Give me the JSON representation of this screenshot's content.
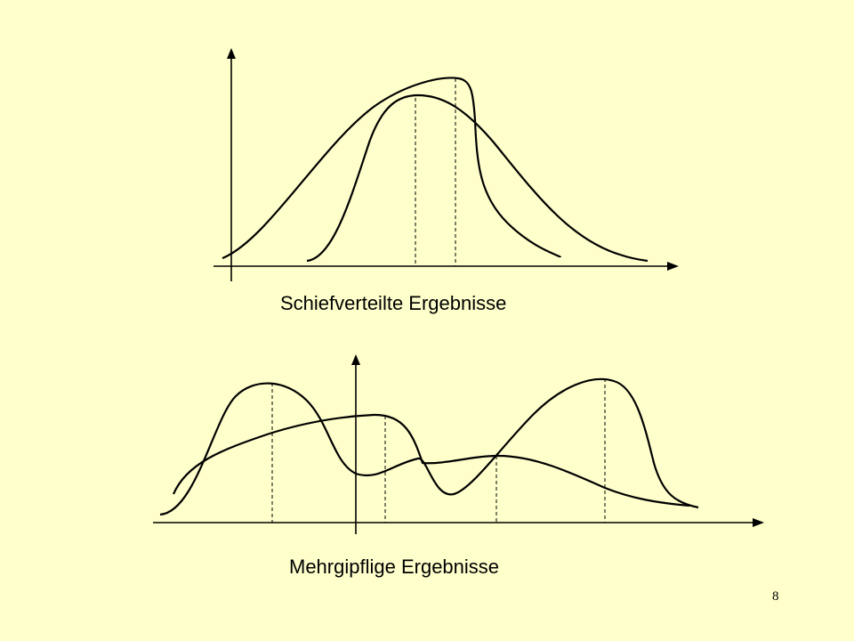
{
  "slide": {
    "page_number": "8",
    "background_color": "#FFFFCC",
    "diagrams": [
      {
        "id": "skewed",
        "caption": "Schiefverteilte Ergebnisse",
        "curves": 2,
        "marker_lines": 2
      },
      {
        "id": "multimodal",
        "caption": "Mehrgipflige Ergebnisse",
        "curves": 2,
        "marker_lines": 4
      }
    ]
  }
}
